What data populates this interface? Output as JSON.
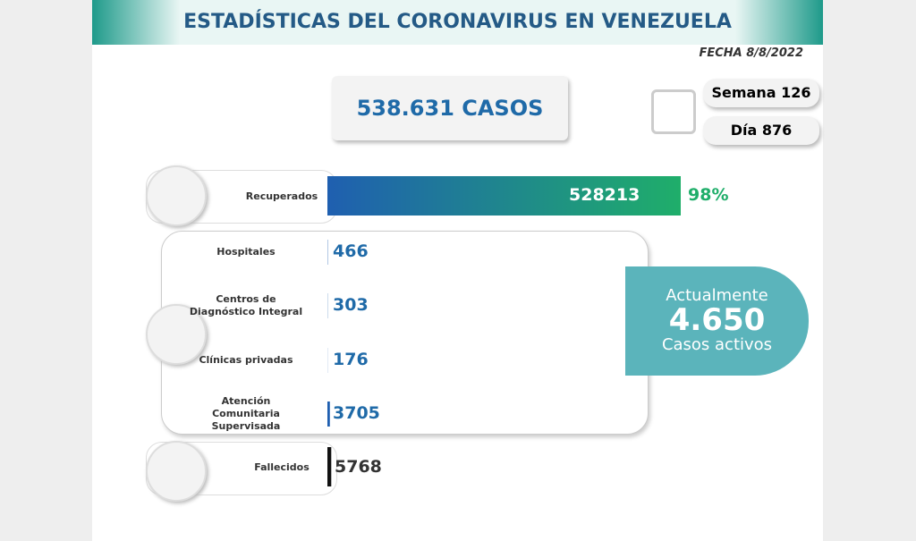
{
  "header": {
    "title": "ESTADÍSTICAS DEL CORONAVIRUS EN VENEZUELA",
    "date": "FECHA 8/8/2022"
  },
  "total": "538.631 CASOS",
  "week": "Semana 126",
  "day": "Día 876",
  "recovered": {
    "label": "Recuperados",
    "value": 528213,
    "percent_label": "98%"
  },
  "breakdown": [
    {
      "label": [
        "Hospitales"
      ],
      "value": 466
    },
    {
      "label": [
        "Centros de",
        "Diagnóstico Integral"
      ],
      "value": 303
    },
    {
      "label": [
        "Clínicas privadas"
      ],
      "value": 176
    },
    {
      "label": [
        "Atención",
        "Comunitaria",
        "Supervisada"
      ],
      "value": 3705
    }
  ],
  "active": {
    "heading": "Actualmente",
    "value_label": "4.650",
    "caption": "Casos activos"
  },
  "deaths": {
    "label": "Fallecidos",
    "value": 5768
  }
}
